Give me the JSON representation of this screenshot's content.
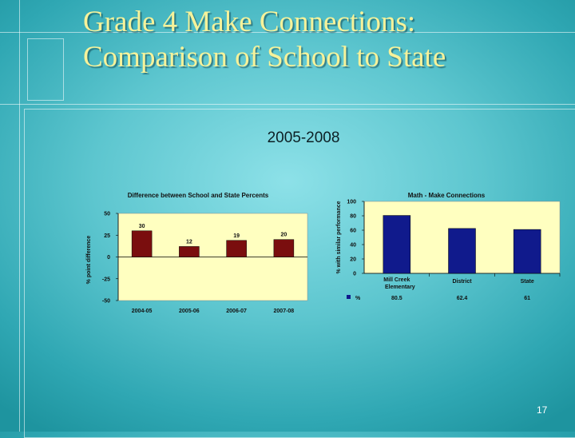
{
  "slide": {
    "title_line1": "Grade 4 Make Connections:",
    "title_line2": "Comparison of School to State",
    "subtitle": "2005-2008",
    "page_number": "17"
  },
  "colors": {
    "title": "#f6f29a",
    "plot_area": "#ffffc0",
    "bar_difference": "#7a0e0e",
    "bar_math": "#101a8c"
  },
  "chart_data": [
    {
      "type": "bar",
      "title": "Difference between School and State Percents",
      "xlabel": "",
      "ylabel": "% point difference",
      "categories": [
        "2004-05",
        "2005-06",
        "2006-07",
        "2007-08"
      ],
      "values": [
        30,
        12,
        19,
        20
      ],
      "ylim": [
        -50,
        50
      ],
      "yticks": [
        -50,
        -25,
        0,
        25,
        50
      ],
      "grid": false,
      "legend": "none"
    },
    {
      "type": "bar",
      "title": "Math - Make Connections",
      "xlabel": "",
      "ylabel": "% with similar performance",
      "categories": [
        "Mill Creek Elementary",
        "District",
        "State"
      ],
      "series": [
        {
          "name": "%",
          "values": [
            80.5,
            62.4,
            61
          ]
        }
      ],
      "value_labels": [
        "80.5",
        "62.4",
        "61"
      ],
      "ylim": [
        0,
        100
      ],
      "yticks": [
        0,
        20,
        40,
        60,
        80,
        100
      ],
      "grid": false,
      "legend": "bottom-left",
      "data_table": true
    }
  ]
}
